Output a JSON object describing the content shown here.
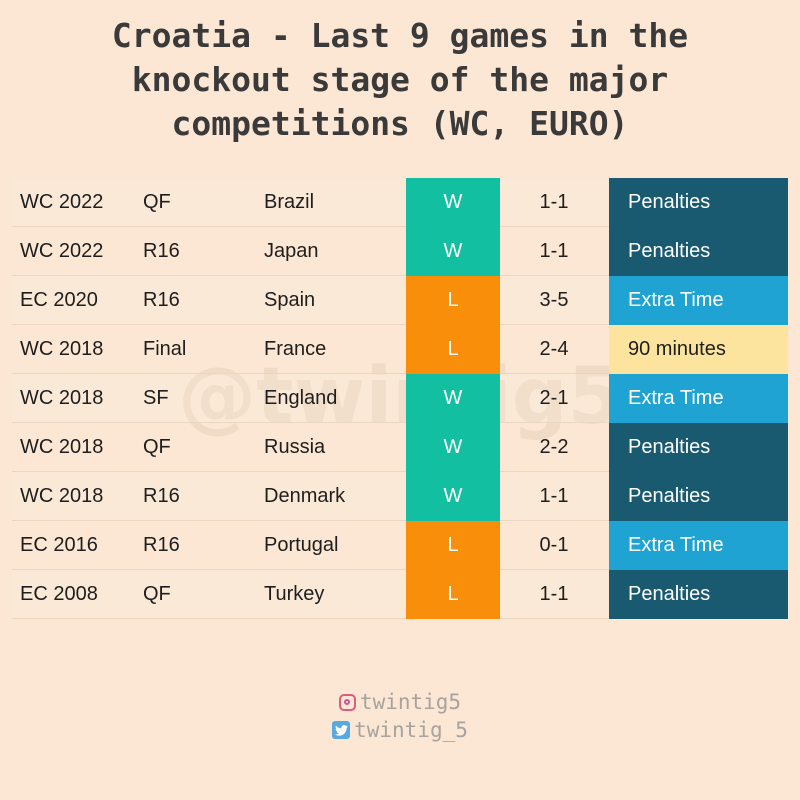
{
  "title_lines": [
    "Croatia - Last 9 games in the",
    "knockout stage of the major",
    "competitions (WC, EURO)"
  ],
  "watermark": "@twintig5",
  "handles": {
    "instagram": "twintig5",
    "twitter": "twintig_5"
  },
  "colors": {
    "W": "#12bfa0",
    "L": "#f98e0b",
    "Penalties": "#1a5a70",
    "Extra Time": "#1ea3d2",
    "90 minutes": "#fce49e",
    "light_text": "#ffffff",
    "dark_text": "#1e1e1e"
  },
  "chart_data": {
    "type": "table",
    "rows": [
      {
        "competition": "WC 2022",
        "stage": "QF",
        "opponent": "Brazil",
        "result": "W",
        "score": "1-1",
        "decided": "Penalties"
      },
      {
        "competition": "WC 2022",
        "stage": "R16",
        "opponent": "Japan",
        "result": "W",
        "score": "1-1",
        "decided": "Penalties"
      },
      {
        "competition": "EC 2020",
        "stage": "R16",
        "opponent": "Spain",
        "result": "L",
        "score": "3-5",
        "decided": "Extra Time"
      },
      {
        "competition": "WC 2018",
        "stage": "Final",
        "opponent": "France",
        "result": "L",
        "score": "2-4",
        "decided": "90 minutes"
      },
      {
        "competition": "WC 2018",
        "stage": "SF",
        "opponent": "England",
        "result": "W",
        "score": "2-1",
        "decided": "Extra Time"
      },
      {
        "competition": "WC 2018",
        "stage": "QF",
        "opponent": "Russia",
        "result": "W",
        "score": "2-2",
        "decided": "Penalties"
      },
      {
        "competition": "WC 2018",
        "stage": "R16",
        "opponent": "Denmark",
        "result": "W",
        "score": "1-1",
        "decided": "Penalties"
      },
      {
        "competition": "EC 2016",
        "stage": "R16",
        "opponent": "Portugal",
        "result": "L",
        "score": "0-1",
        "decided": "Extra Time"
      },
      {
        "competition": "EC 2008",
        "stage": "QF",
        "opponent": "Turkey",
        "result": "L",
        "score": "1-1",
        "decided": "Penalties"
      }
    ]
  }
}
